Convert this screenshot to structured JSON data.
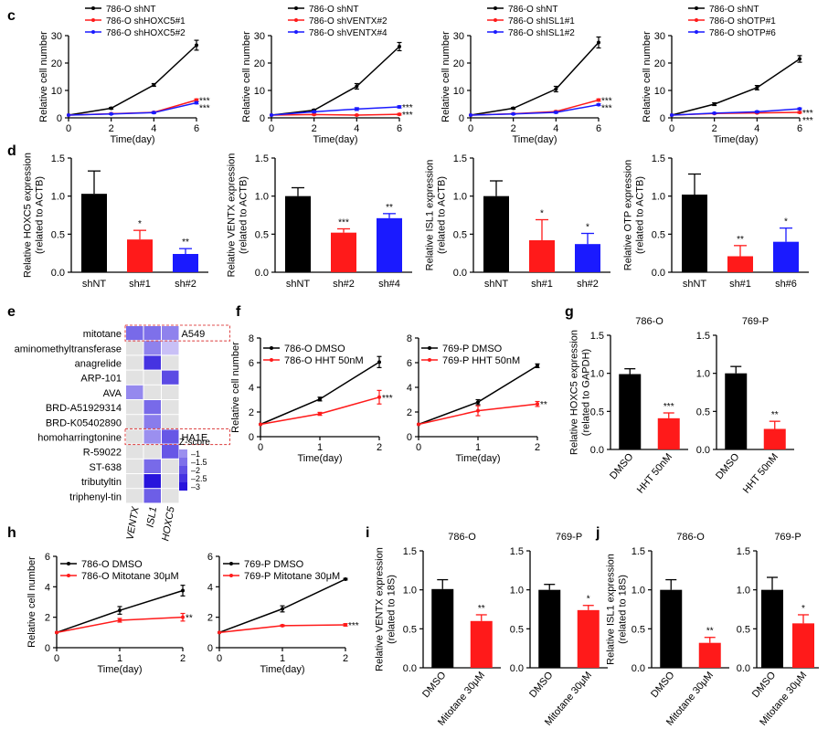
{
  "colors": {
    "black": "#000000",
    "red": "#ff1a1a",
    "blue": "#1a1aff",
    "pos": "#6a5acd",
    "neutral": "#e2e2e2",
    "hl": "#e05050"
  },
  "panel_labels": {
    "c": "c",
    "d": "d",
    "e": "e",
    "f": "f",
    "g": "g",
    "h": "h",
    "i": "i",
    "j": "j"
  },
  "chart_data": [
    {
      "id": "c1",
      "type": "line",
      "panel": "c",
      "xlabel": "Time(day)",
      "ylabel": "Relative cell number",
      "xlim": [
        0,
        6
      ],
      "ylim": [
        0,
        30
      ],
      "xticks": [
        0,
        2,
        4,
        6
      ],
      "yticks": [
        0,
        10,
        20,
        30
      ],
      "series": [
        {
          "name": "786-O shNT",
          "color": "black",
          "x": [
            0,
            2,
            4,
            6
          ],
          "y": [
            1,
            3.5,
            12,
            26.5
          ],
          "err": [
            0,
            0.3,
            0.5,
            1.8
          ],
          "sig": ""
        },
        {
          "name": "786-O shHOXC5#1",
          "color": "red",
          "x": [
            0,
            2,
            4,
            6
          ],
          "y": [
            1,
            1.5,
            2,
            6.5
          ],
          "err": [
            0,
            0.2,
            0.3,
            0.4
          ],
          "sig": "***"
        },
        {
          "name": "786-O shHOXC5#2",
          "color": "blue",
          "x": [
            0,
            2,
            4,
            6
          ],
          "y": [
            1,
            1.4,
            1.9,
            5.5
          ],
          "err": [
            0,
            0.2,
            0.3,
            0.4
          ],
          "sig": "***"
        }
      ]
    },
    {
      "id": "c2",
      "type": "line",
      "panel": "c",
      "xlabel": "Time(day)",
      "ylabel": "Relative cell number",
      "xlim": [
        0,
        6
      ],
      "ylim": [
        0,
        30
      ],
      "xticks": [
        0,
        2,
        4,
        6
      ],
      "yticks": [
        0,
        10,
        20,
        30
      ],
      "series": [
        {
          "name": "786-O shNT",
          "color": "black",
          "x": [
            0,
            2,
            4,
            6
          ],
          "y": [
            1,
            2.8,
            11.5,
            26
          ],
          "err": [
            0,
            0.3,
            1,
            1.5
          ],
          "sig": ""
        },
        {
          "name": "786-O shVENTX#2",
          "color": "red",
          "x": [
            0,
            2,
            4,
            6
          ],
          "y": [
            1,
            1.2,
            1,
            1.3
          ],
          "err": [
            0,
            0.2,
            0.2,
            0.3
          ],
          "sig": "***"
        },
        {
          "name": "786-O shVENTX#4",
          "color": "blue",
          "x": [
            0,
            2,
            4,
            6
          ],
          "y": [
            1,
            2.2,
            3.2,
            4
          ],
          "err": [
            0,
            0.3,
            0.5,
            0.4
          ],
          "sig": "***"
        }
      ]
    },
    {
      "id": "c3",
      "type": "line",
      "panel": "c",
      "xlabel": "Time(day)",
      "ylabel": "Relative cell number",
      "xlim": [
        0,
        6
      ],
      "ylim": [
        0,
        30
      ],
      "xticks": [
        0,
        2,
        4,
        6
      ],
      "yticks": [
        0,
        10,
        20,
        30
      ],
      "series": [
        {
          "name": "786-O shNT",
          "color": "black",
          "x": [
            0,
            2,
            4,
            6
          ],
          "y": [
            1,
            3.5,
            10.5,
            27.5
          ],
          "err": [
            0,
            0.3,
            1,
            2
          ],
          "sig": ""
        },
        {
          "name": "786-O shISL1#1",
          "color": "red",
          "x": [
            0,
            2,
            4,
            6
          ],
          "y": [
            1,
            1.5,
            2.3,
            6.5
          ],
          "err": [
            0,
            0.2,
            0.3,
            0.4
          ],
          "sig": "***"
        },
        {
          "name": "786-O shISL1#2",
          "color": "blue",
          "x": [
            0,
            2,
            4,
            6
          ],
          "y": [
            1,
            1.4,
            2,
            4.8
          ],
          "err": [
            0,
            0.2,
            0.3,
            0.3
          ],
          "sig": "***"
        }
      ]
    },
    {
      "id": "c4",
      "type": "line",
      "panel": "c",
      "xlabel": "Time(day)",
      "ylabel": "Relative cell number",
      "xlim": [
        0,
        6
      ],
      "ylim": [
        0,
        30
      ],
      "xticks": [
        0,
        2,
        4,
        6
      ],
      "yticks": [
        0,
        10,
        20,
        30
      ],
      "series": [
        {
          "name": "786-O shNT",
          "color": "black",
          "x": [
            0,
            2,
            4,
            6
          ],
          "y": [
            1,
            5,
            11,
            21.5
          ],
          "err": [
            0,
            0.5,
            0.8,
            1.2
          ],
          "sig": ""
        },
        {
          "name": "786-O shOTP#1",
          "color": "red",
          "x": [
            0,
            2,
            4,
            6
          ],
          "y": [
            1,
            1.6,
            1.8,
            2
          ],
          "err": [
            0,
            0.2,
            0.2,
            0.3
          ],
          "sig": "***"
        },
        {
          "name": "786-O shOTP#6",
          "color": "blue",
          "x": [
            0,
            2,
            4,
            6
          ],
          "y": [
            1,
            1.7,
            2.2,
            3.3
          ],
          "err": [
            0,
            0.2,
            0.3,
            0.3
          ],
          "sig": "***"
        }
      ]
    },
    {
      "id": "d1",
      "type": "bar",
      "panel": "d",
      "ylabel": "Relative HOXC5 expression\n(related to ACTB)",
      "ylim": [
        0,
        1.5
      ],
      "yticks": [
        0,
        0.5,
        1.0,
        1.5
      ],
      "ytick_labels": [
        "0.0",
        "0.5",
        "1.0",
        "1.5"
      ],
      "categories": [
        "shNT",
        "sh#1",
        "sh#2"
      ],
      "values": [
        1.03,
        0.43,
        0.24
      ],
      "err": [
        0.3,
        0.12,
        0.07
      ],
      "colors": [
        "black",
        "red",
        "blue"
      ],
      "sig": [
        "",
        "*",
        "**"
      ]
    },
    {
      "id": "d2",
      "type": "bar",
      "panel": "d",
      "ylabel": "Relative VENTX expression\n(related to ACTB)",
      "ylim": [
        0,
        1.5
      ],
      "yticks": [
        0,
        0.5,
        1.0,
        1.5
      ],
      "ytick_labels": [
        "0.0",
        "0.5",
        "1.0",
        "1.5"
      ],
      "categories": [
        "shNT",
        "sh#2",
        "sh#4"
      ],
      "values": [
        1.0,
        0.52,
        0.71
      ],
      "err": [
        0.11,
        0.05,
        0.06
      ],
      "colors": [
        "black",
        "red",
        "blue"
      ],
      "sig": [
        "",
        "***",
        "**"
      ]
    },
    {
      "id": "d3",
      "type": "bar",
      "panel": "d",
      "ylabel": "Relative ISL1 expression\n(related to ACTB)",
      "ylim": [
        0,
        1.5
      ],
      "yticks": [
        0,
        0.5,
        1.0,
        1.5
      ],
      "ytick_labels": [
        "0.0",
        "0.5",
        "1.0",
        "1.5"
      ],
      "categories": [
        "shNT",
        "sh#1",
        "sh#2"
      ],
      "values": [
        1.0,
        0.42,
        0.37
      ],
      "err": [
        0.2,
        0.27,
        0.14
      ],
      "colors": [
        "black",
        "red",
        "blue"
      ],
      "sig": [
        "",
        "*",
        "*"
      ]
    },
    {
      "id": "d4",
      "type": "bar",
      "panel": "d",
      "ylabel": "Relative OTP expression\n(related to ACTB)",
      "ylim": [
        0,
        1.5
      ],
      "yticks": [
        0,
        0.5,
        1.0,
        1.5
      ],
      "ytick_labels": [
        "0.0",
        "0.5",
        "1.0",
        "1.5"
      ],
      "categories": [
        "shNT",
        "sh#1",
        "sh#6"
      ],
      "values": [
        1.02,
        0.21,
        0.4
      ],
      "err": [
        0.27,
        0.14,
        0.18
      ],
      "colors": [
        "black",
        "red",
        "blue"
      ],
      "sig": [
        "",
        "**",
        "*"
      ]
    },
    {
      "id": "e",
      "type": "heatmap",
      "panel": "e",
      "rows": [
        "mitotane",
        "aminomethyltransferase",
        "anagrelide",
        "ARP-101",
        "AVA",
        "BRD-A51929314",
        "BRD-K05402890",
        "homoharringtonine",
        "R-59022",
        "ST-638",
        "tributyltin",
        "triphenyl-tin"
      ],
      "columns": [
        "VENTX",
        "ISL1",
        "HOXC5"
      ],
      "values": [
        [
          -1.6,
          -1.5,
          -1.2
        ],
        [
          0,
          -1.2,
          -0.2
        ],
        [
          0,
          -2.5,
          0
        ],
        [
          0,
          0,
          -2.1
        ],
        [
          -1.1,
          0,
          0
        ],
        [
          0,
          -1.6,
          0
        ],
        [
          0,
          -1.3,
          0
        ],
        [
          0,
          -1.0,
          -1.9
        ],
        [
          0,
          0,
          -1.9
        ],
        [
          0,
          -1.6,
          0
        ],
        [
          0,
          -3.0,
          0
        ],
        [
          0,
          -1.8,
          0
        ]
      ],
      "highlights": [
        {
          "row": "mitotane",
          "label": "A549"
        },
        {
          "row": "homoharringtonine",
          "label": "HA1E"
        }
      ],
      "legend_title": "Z-score",
      "legend_ticks": [
        "–1",
        "–1.5",
        "–2",
        "–2.5",
        "–3"
      ]
    },
    {
      "id": "f1",
      "type": "line",
      "panel": "f",
      "xlabel": "Time(day)",
      "ylabel": "Relative cell number",
      "xlim": [
        0,
        2
      ],
      "ylim": [
        0,
        8
      ],
      "xticks": [
        0,
        1,
        2
      ],
      "yticks": [
        0,
        2,
        4,
        6,
        8
      ],
      "series": [
        {
          "name": "786-O DMSO",
          "color": "black",
          "x": [
            0,
            1,
            2
          ],
          "y": [
            1,
            3.05,
            6.05
          ],
          "err": [
            0,
            0.15,
            0.45
          ],
          "sig": ""
        },
        {
          "name": "786-O HHT 50nM",
          "color": "red",
          "x": [
            0,
            1,
            2
          ],
          "y": [
            1,
            1.85,
            3.2
          ],
          "err": [
            0,
            0.12,
            0.55
          ],
          "sig": "***"
        }
      ]
    },
    {
      "id": "f2",
      "type": "line",
      "panel": "f",
      "xlabel": "Time(day)",
      "ylabel": "",
      "xlim": [
        0,
        2
      ],
      "ylim": [
        0,
        8
      ],
      "xticks": [
        0,
        1,
        2
      ],
      "yticks": [
        0,
        2,
        4,
        6,
        8
      ],
      "series": [
        {
          "name": "769-P DMSO",
          "color": "black",
          "x": [
            0,
            1,
            2
          ],
          "y": [
            1,
            2.8,
            5.75
          ],
          "err": [
            0,
            0.2,
            0.15
          ],
          "sig": ""
        },
        {
          "name": "769-P HHT 50nM",
          "color": "red",
          "x": [
            0,
            1,
            2
          ],
          "y": [
            1,
            2.1,
            2.65
          ],
          "err": [
            0,
            0.4,
            0.2
          ],
          "sig": "**"
        }
      ]
    },
    {
      "id": "g1",
      "type": "bar",
      "panel": "g",
      "title": "786-O",
      "ylabel": "Relative HOXC5 expression\n(related to GAPDH)",
      "ylim": [
        0,
        1.5
      ],
      "yticks": [
        0,
        0.5,
        1.0,
        1.5
      ],
      "ytick_labels": [
        "0.0",
        "0.5",
        "1.0",
        "1.5"
      ],
      "categories": [
        "DMSO",
        "HHT 50nM"
      ],
      "values": [
        0.99,
        0.41
      ],
      "err": [
        0.07,
        0.07
      ],
      "colors": [
        "black",
        "red"
      ],
      "sig": [
        "",
        "***"
      ]
    },
    {
      "id": "g2",
      "type": "bar",
      "panel": "g",
      "title": "769-P",
      "ylabel": "",
      "ylim": [
        0,
        1.5
      ],
      "yticks": [
        0,
        0.5,
        1.0,
        1.5
      ],
      "ytick_labels": [
        "0.0",
        "0.5",
        "1.0",
        "1.5"
      ],
      "categories": [
        "DMSO",
        "HHT 50nM"
      ],
      "values": [
        1.0,
        0.27
      ],
      "err": [
        0.09,
        0.1
      ],
      "colors": [
        "black",
        "red"
      ],
      "sig": [
        "",
        "**"
      ]
    },
    {
      "id": "h1",
      "type": "line",
      "panel": "h",
      "xlabel": "Time(day)",
      "ylabel": "Relative cell number",
      "xlim": [
        0,
        2
      ],
      "ylim": [
        0,
        6
      ],
      "xticks": [
        0,
        1,
        2
      ],
      "yticks": [
        0,
        2,
        4,
        6
      ],
      "series": [
        {
          "name": "786-O DMSO",
          "color": "black",
          "x": [
            0,
            1,
            2
          ],
          "y": [
            1,
            2.45,
            3.75
          ],
          "err": [
            0,
            0.25,
            0.35
          ],
          "sig": ""
        },
        {
          "name": "786-O Mitotane 30μM",
          "color": "red",
          "x": [
            0,
            1,
            2
          ],
          "y": [
            1,
            1.8,
            2.0
          ],
          "err": [
            0,
            0.12,
            0.25
          ],
          "sig": "**"
        }
      ]
    },
    {
      "id": "h2",
      "type": "line",
      "panel": "h",
      "xlabel": "Time(day)",
      "ylabel": "",
      "xlim": [
        0,
        2
      ],
      "ylim": [
        0,
        6
      ],
      "xticks": [
        0,
        1,
        2
      ],
      "yticks": [
        0,
        2,
        4,
        6
      ],
      "series": [
        {
          "name": "769-P DMSO",
          "color": "black",
          "x": [
            0,
            1,
            2
          ],
          "y": [
            1,
            2.55,
            4.5
          ],
          "err": [
            0,
            0.2,
            0.05
          ],
          "sig": ""
        },
        {
          "name": "769-P Mitotane 30μM",
          "color": "red",
          "x": [
            0,
            1,
            2
          ],
          "y": [
            1,
            1.45,
            1.5
          ],
          "err": [
            0,
            0.05,
            0.08
          ],
          "sig": "***"
        }
      ]
    },
    {
      "id": "i1",
      "type": "bar",
      "panel": "i",
      "title": "786-O",
      "ylabel": "Relative VENTX expression\n(related to 18S)",
      "ylim": [
        0,
        1.5
      ],
      "yticks": [
        0,
        0.5,
        1.0,
        1.5
      ],
      "ytick_labels": [
        "0.0",
        "0.5",
        "1.0",
        "1.5"
      ],
      "categories": [
        "DMSO",
        "Mitotane 30μM"
      ],
      "values": [
        1.01,
        0.6
      ],
      "err": [
        0.12,
        0.08
      ],
      "colors": [
        "black",
        "red"
      ],
      "sig": [
        "",
        "**"
      ]
    },
    {
      "id": "i2",
      "type": "bar",
      "panel": "i",
      "title": "769-P",
      "ylabel": "",
      "ylim": [
        0,
        1.5
      ],
      "yticks": [
        0,
        0.5,
        1.0,
        1.5
      ],
      "ytick_labels": [
        "0.0",
        "0.5",
        "1.0",
        "1.5"
      ],
      "categories": [
        "DMSO",
        "Mitotane 30μM"
      ],
      "values": [
        1.0,
        0.74
      ],
      "err": [
        0.07,
        0.06
      ],
      "colors": [
        "black",
        "red"
      ],
      "sig": [
        "",
        "*"
      ]
    },
    {
      "id": "j1",
      "type": "bar",
      "panel": "j",
      "title": "786-O",
      "ylabel": "Relative ISL1 expression\n(related to 18S)",
      "ylim": [
        0,
        1.5
      ],
      "yticks": [
        0,
        0.5,
        1.0,
        1.5
      ],
      "ytick_labels": [
        "0.0",
        "0.5",
        "1.0",
        "1.5"
      ],
      "categories": [
        "DMSO",
        "Mitotane 30μM"
      ],
      "values": [
        1.0,
        0.32
      ],
      "err": [
        0.13,
        0.07
      ],
      "colors": [
        "black",
        "red"
      ],
      "sig": [
        "",
        "**"
      ]
    },
    {
      "id": "j2",
      "type": "bar",
      "panel": "j",
      "title": "769-P",
      "ylabel": "",
      "ylim": [
        0,
        1.5
      ],
      "yticks": [
        0,
        0.5,
        1.0,
        1.5
      ],
      "ytick_labels": [
        "0.0",
        "0.5",
        "1.0",
        "1.5"
      ],
      "categories": [
        "DMSO",
        "Mitotane 30μM"
      ],
      "values": [
        1.0,
        0.57
      ],
      "err": [
        0.16,
        0.11
      ],
      "colors": [
        "black",
        "red"
      ],
      "sig": [
        "",
        "*"
      ]
    }
  ]
}
